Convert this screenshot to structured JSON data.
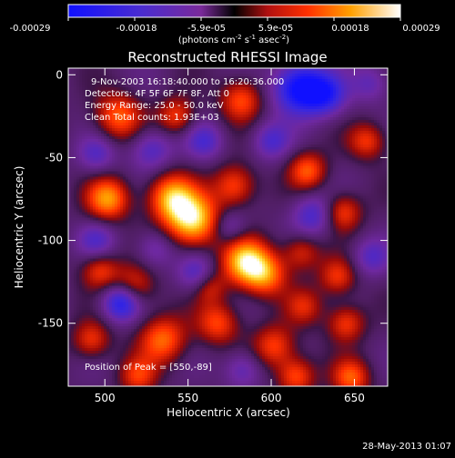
{
  "colorbar": {
    "tick_labels": [
      "-0.00029",
      "-0.00018",
      "-5.9e-05",
      "5.9e-05",
      "0.00018",
      "0.00029"
    ],
    "units_main": "(photons cm",
    "units_sup1": "-2",
    "units_mid": " s",
    "units_sup2": "-1",
    "units_tail": " asec",
    "units_sup3": "-2",
    "units_close": ")",
    "range": [
      -0.00029,
      0.00029
    ]
  },
  "plot": {
    "title": "Reconstructed RHESSI Image",
    "info_lines": [
      "9-Nov-2003 16:18:40.000 to 16:20:36.000",
      "Detectors: 4F 5F 6F 7F 8F, Att 0",
      "Energy Range: 25.0 - 50.0 keV",
      "Clean     Total counts: 1.93E+03"
    ],
    "peak_label": "Position of Peak = [550,-89]"
  },
  "chart_data": {
    "type": "heatmap",
    "title": "Reconstructed RHESSI Image",
    "xlabel": "Heliocentric X (arcsec)",
    "ylabel": "Heliocentric Y (arcsec)",
    "xlim": [
      478,
      670
    ],
    "ylim": [
      -188,
      4
    ],
    "x_ticks": [
      500,
      550,
      600,
      650
    ],
    "y_ticks": [
      0,
      -50,
      -100,
      -150
    ],
    "colorbar_range": [
      -0.00029,
      0.00029
    ],
    "blobs": [
      {
        "x": 553,
        "y": -88,
        "a": 1.0,
        "s": 11
      },
      {
        "x": 540,
        "y": -74,
        "a": 0.8,
        "s": 10
      },
      {
        "x": 585,
        "y": -113,
        "a": 0.95,
        "s": 10
      },
      {
        "x": 597,
        "y": -121,
        "a": 0.6,
        "s": 9
      },
      {
        "x": 502,
        "y": -75,
        "a": 0.78,
        "s": 9
      },
      {
        "x": 578,
        "y": -67,
        "a": 0.58,
        "s": 9
      },
      {
        "x": 508,
        "y": -25,
        "a": 0.62,
        "s": 10
      },
      {
        "x": 543,
        "y": -25,
        "a": 0.52,
        "s": 8
      },
      {
        "x": 582,
        "y": -15,
        "a": 0.58,
        "s": 9
      },
      {
        "x": 622,
        "y": -58,
        "a": 0.6,
        "s": 8
      },
      {
        "x": 643,
        "y": -83,
        "a": 0.55,
        "s": 8
      },
      {
        "x": 658,
        "y": -40,
        "a": 0.5,
        "s": 8
      },
      {
        "x": 517,
        "y": -128,
        "a": 0.55,
        "s": 9
      },
      {
        "x": 497,
        "y": -118,
        "a": 0.5,
        "s": 8
      },
      {
        "x": 568,
        "y": -150,
        "a": 0.55,
        "s": 9
      },
      {
        "x": 535,
        "y": -160,
        "a": 0.65,
        "s": 10
      },
      {
        "x": 602,
        "y": -164,
        "a": 0.55,
        "s": 9
      },
      {
        "x": 645,
        "y": -150,
        "a": 0.52,
        "s": 8
      },
      {
        "x": 640,
        "y": -122,
        "a": 0.5,
        "s": 8
      },
      {
        "x": 618,
        "y": -107,
        "a": 0.45,
        "s": 8
      },
      {
        "x": 615,
        "y": -182,
        "a": 0.58,
        "s": 8
      },
      {
        "x": 648,
        "y": -183,
        "a": 0.6,
        "s": 8
      },
      {
        "x": 492,
        "y": -160,
        "a": 0.5,
        "s": 8
      },
      {
        "x": 520,
        "y": -182,
        "a": 0.48,
        "s": 8
      },
      {
        "x": 563,
        "y": -128,
        "a": 0.4,
        "s": 7
      },
      {
        "x": 620,
        "y": -140,
        "a": 0.4,
        "s": 8
      },
      {
        "x": 617,
        "y": -8,
        "a": -0.95,
        "s": 11
      },
      {
        "x": 633,
        "y": -12,
        "a": -0.6,
        "s": 9
      },
      {
        "x": 510,
        "y": -137,
        "a": -0.85,
        "s": 8
      },
      {
        "x": 528,
        "y": -45,
        "a": -0.45,
        "s": 9
      },
      {
        "x": 495,
        "y": -100,
        "a": -0.4,
        "s": 8
      },
      {
        "x": 625,
        "y": -85,
        "a": -0.5,
        "s": 9
      },
      {
        "x": 575,
        "y": -92,
        "a": -0.35,
        "s": 7
      },
      {
        "x": 555,
        "y": -120,
        "a": -0.45,
        "s": 8
      },
      {
        "x": 560,
        "y": -40,
        "a": -0.45,
        "s": 8
      },
      {
        "x": 600,
        "y": -40,
        "a": -0.45,
        "s": 8
      },
      {
        "x": 660,
        "y": -110,
        "a": -0.4,
        "s": 8
      },
      {
        "x": 660,
        "y": -5,
        "a": -0.35,
        "s": 8
      },
      {
        "x": 495,
        "y": -48,
        "a": -0.4,
        "s": 8
      },
      {
        "x": 583,
        "y": -178,
        "a": -0.4,
        "s": 8
      },
      {
        "x": 530,
        "y": -105,
        "a": -0.35,
        "s": 8
      }
    ]
  },
  "footer": {
    "timestamp": "28-May-2013 01:07"
  }
}
